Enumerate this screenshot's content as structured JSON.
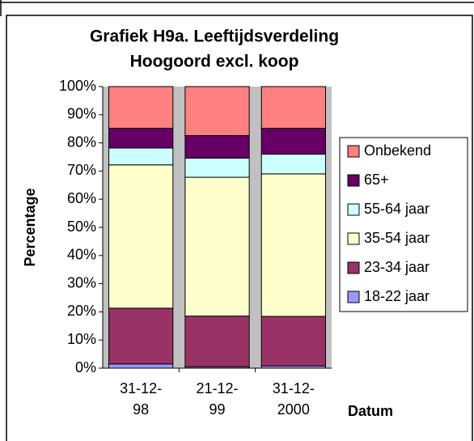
{
  "chart_data": {
    "type": "stacked_bar",
    "title": [
      "Grafiek H9a. Leeftijdsverdeling",
      "Hoogoord excl. koop"
    ],
    "y_label": "Percentage",
    "x_label": "Datum",
    "categories": [
      "31-12-98",
      "21-12-99",
      "31-12-2000"
    ],
    "series": [
      {
        "name": "18-22 jaar",
        "color": "#9999ff",
        "values": [
          1.5,
          0.5,
          0.8
        ]
      },
      {
        "name": "23-34 jaar",
        "color": "#993366",
        "values": [
          19.8,
          18,
          17.6
        ]
      },
      {
        "name": "35-54 jaar",
        "color": "#ffffcc",
        "values": [
          50.9,
          49.3,
          50.6
        ]
      },
      {
        "name": "55-64 jaar",
        "color": "#ccffff",
        "values": [
          6,
          6.8,
          7
        ]
      },
      {
        "name": "65+",
        "color": "#660066",
        "values": [
          7,
          8,
          9.2
        ]
      },
      {
        "name": "Onbekend",
        "color": "#ff8080",
        "values": [
          14.8,
          17.4,
          14.8
        ]
      }
    ],
    "ylim": [
      0,
      100
    ],
    "yticks": [
      {
        "value": 0,
        "label": "0%"
      },
      {
        "value": 10,
        "label": "10%"
      },
      {
        "value": 20,
        "label": "20%"
      },
      {
        "value": 30,
        "label": "30%"
      },
      {
        "value": 40,
        "label": "40%"
      },
      {
        "value": 50,
        "label": "50%"
      },
      {
        "value": 60,
        "label": "60%"
      },
      {
        "value": 70,
        "label": "70%"
      },
      {
        "value": 80,
        "label": "80%"
      },
      {
        "value": 90,
        "label": "90%"
      },
      {
        "value": 100,
        "label": "100%"
      }
    ],
    "legend": "right"
  }
}
